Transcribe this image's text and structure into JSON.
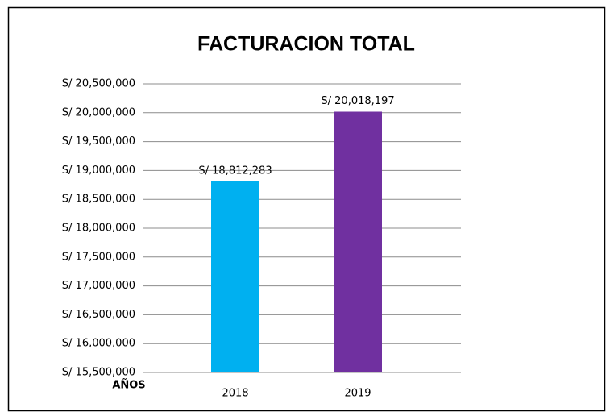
{
  "chart_data": {
    "type": "bar",
    "title": "FACTURACION TOTAL",
    "x_label": "AÑOS",
    "categories": [
      "2018",
      "2019"
    ],
    "values": [
      18812283,
      20018197
    ],
    "value_labels": [
      "S/ 18,812,283",
      "S/ 20,018,197"
    ],
    "colors": [
      "#00b0f0",
      "#7030a0"
    ],
    "ylim": [
      15500000,
      20500000
    ],
    "yticks": [
      {
        "value": 15500000,
        "label": "S/ 15,500,000"
      },
      {
        "value": 16000000,
        "label": "S/ 16,000,000"
      },
      {
        "value": 16500000,
        "label": "S/ 16,500,000"
      },
      {
        "value": 17000000,
        "label": "S/ 17,000,000"
      },
      {
        "value": 17500000,
        "label": "S/ 17,500,000"
      },
      {
        "value": 18000000,
        "label": "S/ 18,000,000"
      },
      {
        "value": 18500000,
        "label": "S/ 18,500,000"
      },
      {
        "value": 19000000,
        "label": "S/ 19,000,000"
      },
      {
        "value": 19500000,
        "label": "S/ 19,500,000"
      },
      {
        "value": 20000000,
        "label": "S/ 20,000,000"
      },
      {
        "value": 20500000,
        "label": "S/ 20,500,000"
      }
    ],
    "grid": true
  }
}
